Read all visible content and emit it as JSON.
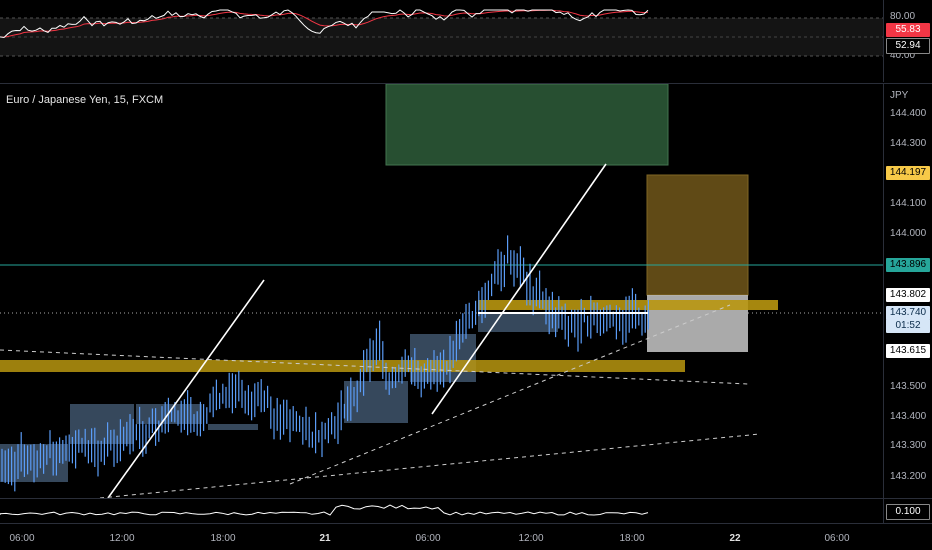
{
  "chart": {
    "title": "Euro / Japanese Yen, 15, FXCM",
    "currency": "JPY"
  },
  "rsi_pane": {
    "ticks": [
      "80.00",
      "40.00"
    ],
    "tags": [
      {
        "label": "55.83",
        "bg": "#f23645",
        "fg": "#ffffff"
      },
      {
        "label": "52.94",
        "bg": "#000000",
        "fg": "#ffffff"
      }
    ]
  },
  "price_axis": {
    "ticks": [
      "144.400",
      "144.300",
      "144.100",
      "144.000",
      "143.500",
      "143.400",
      "143.300",
      "143.200"
    ],
    "tags": [
      {
        "label": "144.197",
        "bg": "#f7c948",
        "fg": "#000000"
      },
      {
        "label": "143.896",
        "bg": "#26a69a",
        "fg": "#000000"
      },
      {
        "label": "143.802",
        "bg": "#ffffff",
        "fg": "#000000"
      },
      {
        "label": "143.740",
        "bg": "#d6e6f7",
        "fg": "#0b2c4a"
      },
      {
        "label": "01:52",
        "bg": "#d6e6f7",
        "fg": "#0b2c4a"
      },
      {
        "label": "143.615",
        "bg": "#ffffff",
        "fg": "#000000"
      }
    ]
  },
  "lower_pane": {
    "tag": "0.100"
  },
  "time_axis": [
    "06:00",
    "12:00",
    "18:00",
    "21",
    "06:00",
    "12:00",
    "18:00",
    "22",
    "06:00"
  ],
  "colors": {
    "background": "#000000",
    "candle": "#5b9cf6",
    "rsi_line": "#ffffff",
    "rsi_ma": "#f23645",
    "target_zone": "#2e5d3a",
    "stop_zone": "#6b5319",
    "gold_band": "#b8960f",
    "ob_box": "#5a7899",
    "trendline": "#ffffff",
    "teal_line": "#26a69a"
  }
}
